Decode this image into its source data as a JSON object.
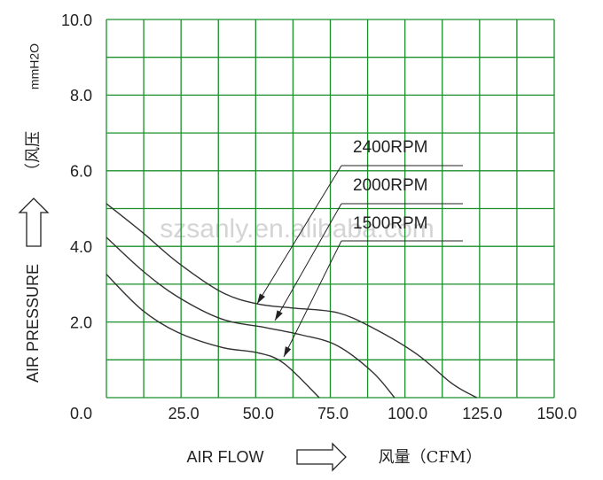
{
  "chart_data": {
    "type": "line",
    "x_label": "AIR FLOW",
    "x_label_cn": "风量（CFM）",
    "y_label": "AIR PRESSURE",
    "y_label_cn": "（风压",
    "y_unit": "mmH2O",
    "watermark": "szsanly.en.alibaba.com",
    "xlim": [
      0,
      150
    ],
    "ylim": [
      0,
      10
    ],
    "xticks": [
      {
        "value": 25,
        "label": "25.0"
      },
      {
        "value": 50,
        "label": "50.0"
      },
      {
        "value": 75,
        "label": "75.0"
      },
      {
        "value": 100,
        "label": "100.0"
      },
      {
        "value": 125,
        "label": "125.0"
      },
      {
        "value": 150,
        "label": "150.0"
      }
    ],
    "yticks": [
      {
        "value": 0,
        "label": "0.0"
      },
      {
        "value": 2,
        "label": "2.0"
      },
      {
        "value": 4,
        "label": "4.0"
      },
      {
        "value": 6,
        "label": "6.0"
      },
      {
        "value": 8,
        "label": "8.0"
      },
      {
        "value": 10,
        "label": "10.0"
      }
    ],
    "xminor": [
      0,
      12.5,
      37.5,
      62.5,
      87.5,
      112.5,
      137.5
    ],
    "yminor": [
      1,
      3,
      5,
      7,
      9
    ],
    "grid": true,
    "grid_color": "#1a8f2a",
    "series": [
      {
        "name": "2400RPM",
        "color": "#333333",
        "x": [
          0,
          11.9,
          23.8,
          38.6,
          50.5,
          62.4,
          77.2,
          89.1,
          104,
          115.8,
          124
        ],
        "values": [
          5.13,
          4.38,
          3.58,
          2.79,
          2.48,
          2.37,
          2.25,
          1.85,
          1.15,
          0.37,
          0
        ]
      },
      {
        "name": "2000RPM",
        "color": "#333333",
        "x": [
          0,
          11.9,
          23.8,
          38.6,
          53.5,
          65.3,
          77.2,
          89.1,
          96.5
        ],
        "values": [
          4.24,
          3.37,
          2.67,
          2.08,
          1.85,
          1.66,
          1.38,
          0.68,
          0
        ]
      },
      {
        "name": "1500RPM",
        "color": "#333333",
        "x": [
          0,
          11.9,
          23.8,
          38.6,
          50.5,
          59.4,
          71.3
        ],
        "values": [
          3.26,
          2.32,
          1.73,
          1.33,
          1.19,
          0.91,
          0
        ]
      }
    ]
  }
}
